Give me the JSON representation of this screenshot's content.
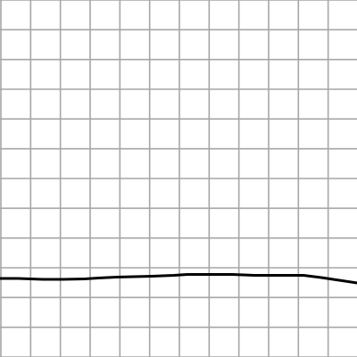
{
  "grid": {
    "visible": true,
    "columns": 12,
    "rows": 12,
    "line_color": "#a6a6a6",
    "background_color": "#ffffff"
  },
  "stroke": {
    "color": "#000000",
    "shape": "slightly-wavy-horizontal-line"
  }
}
